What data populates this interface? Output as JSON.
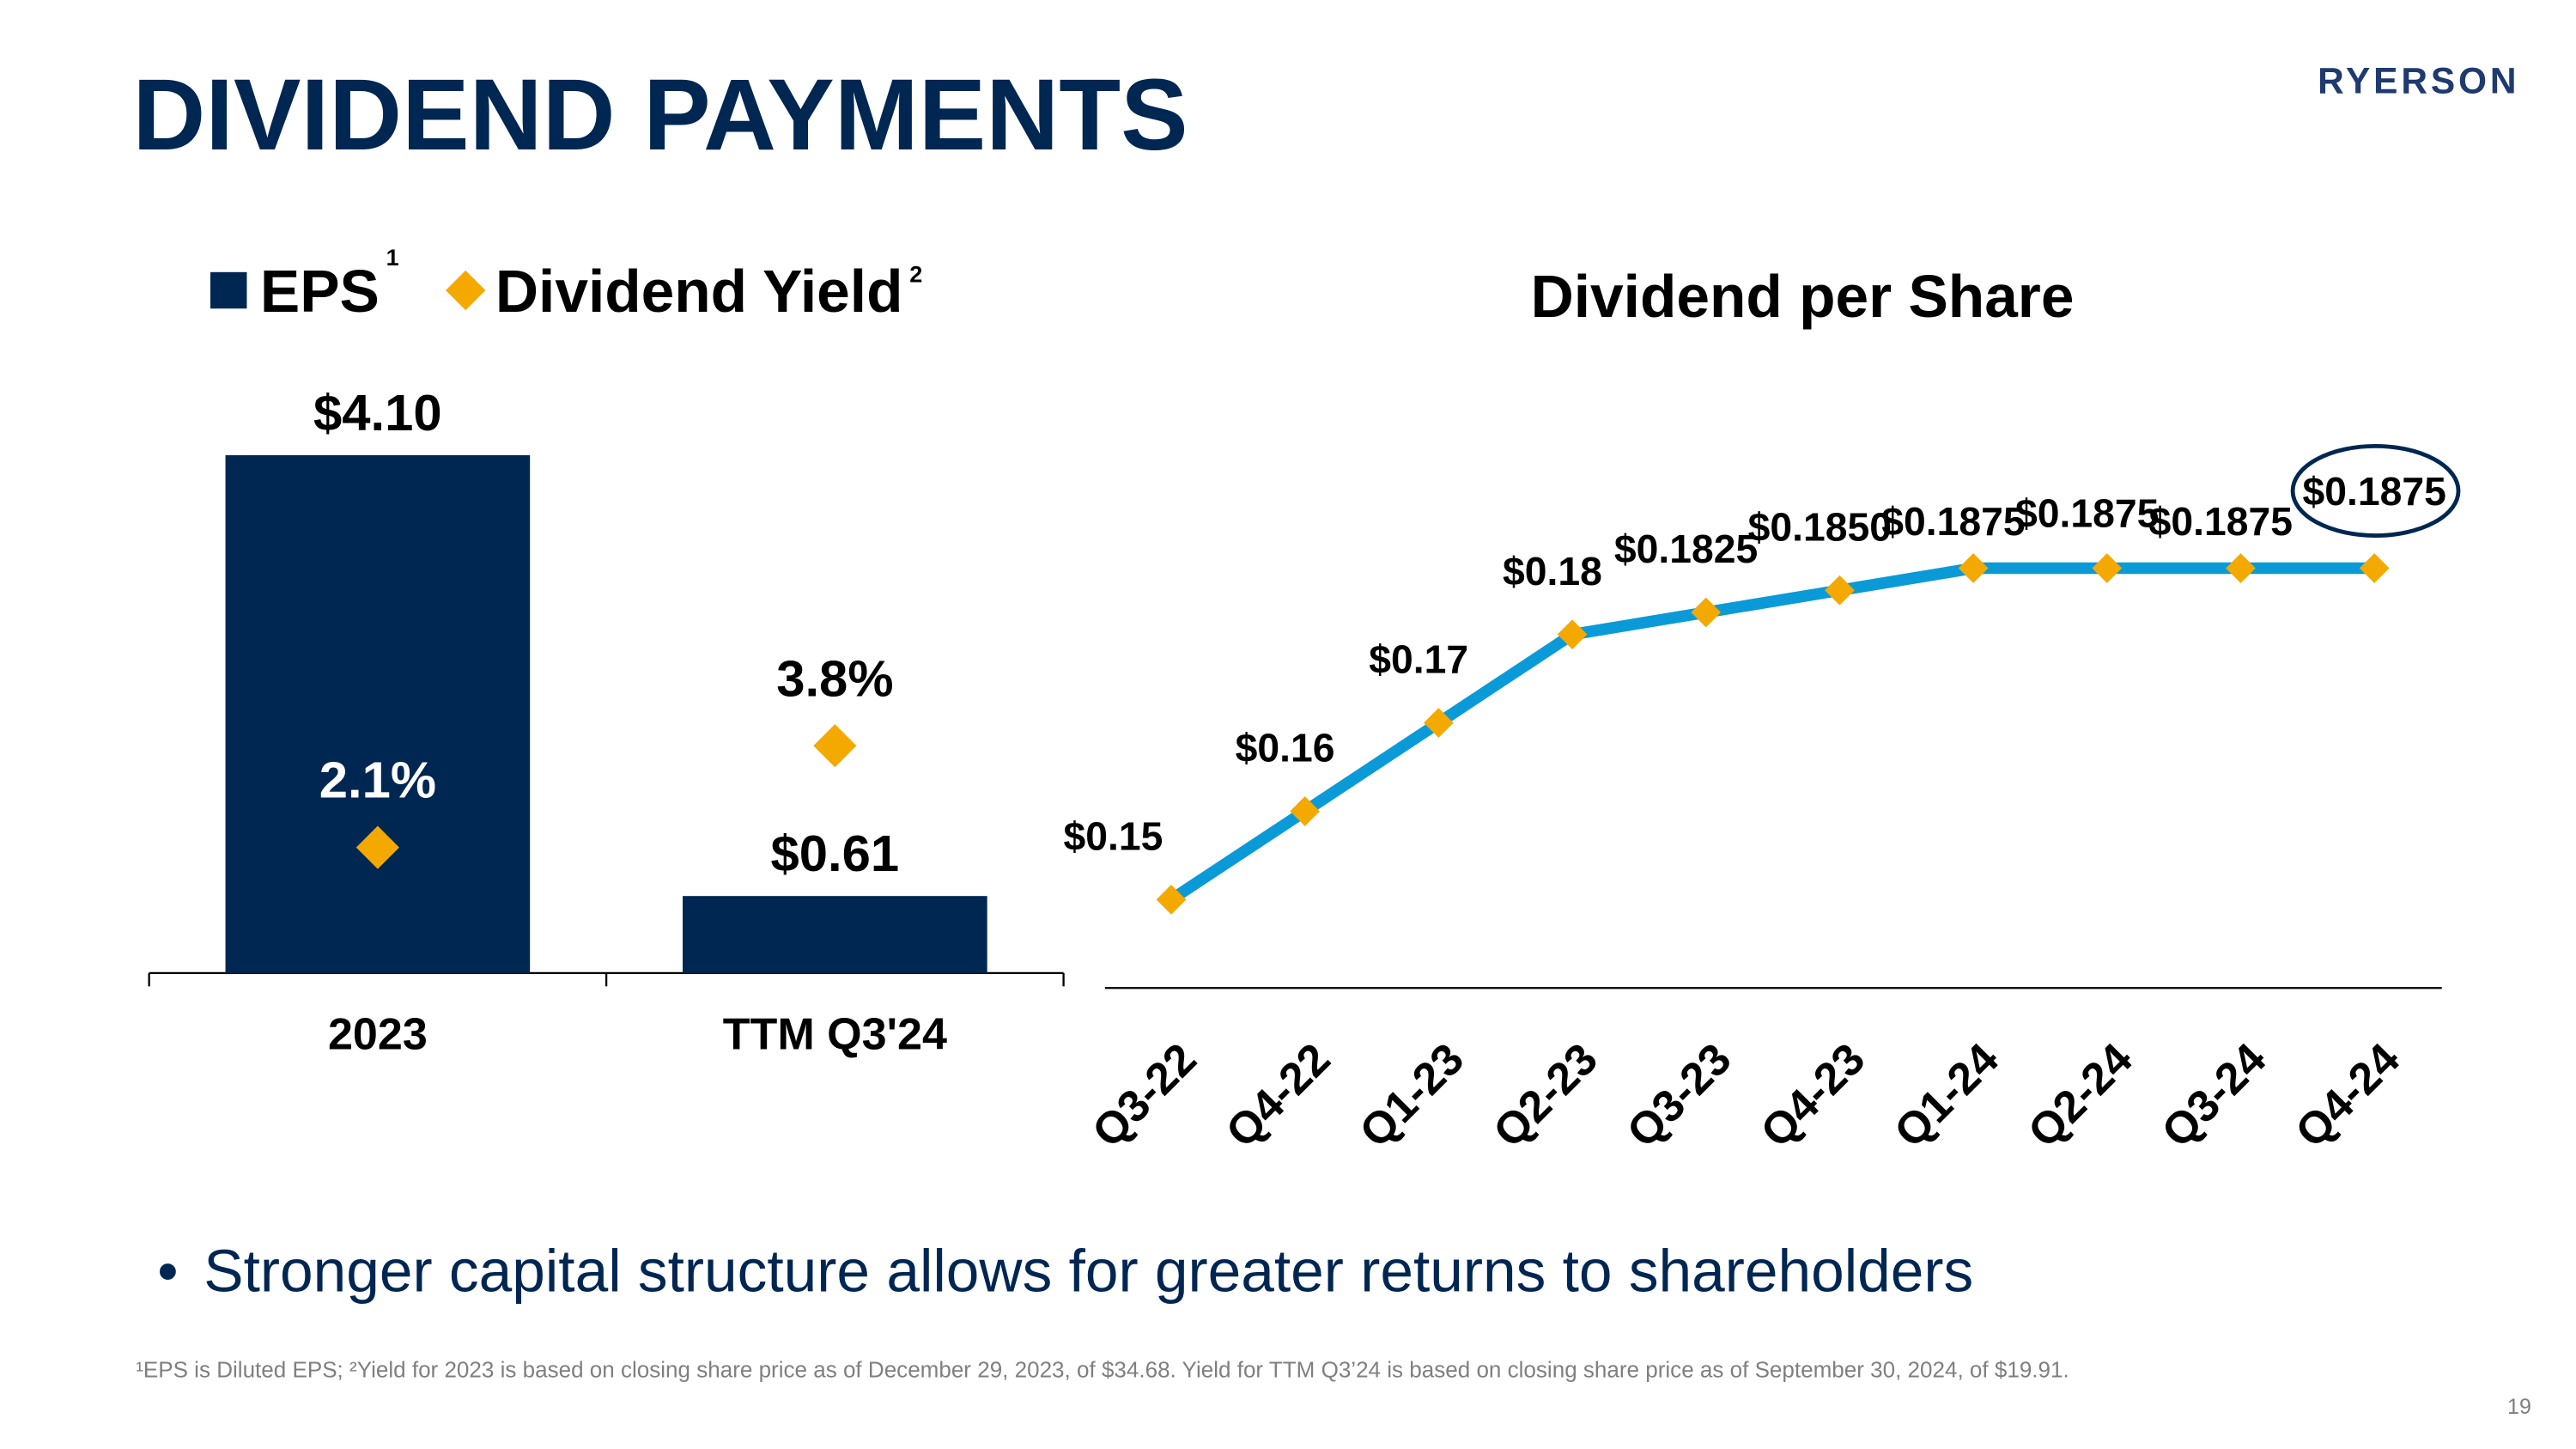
{
  "title": "DIVIDEND PAYMENTS",
  "logo": "RYERSON",
  "bullet": "Stronger capital structure allows for greater returns to shareholders",
  "footnote": "¹EPS is Diluted EPS; ²Yield for 2023 is based on closing share price as of December 29, 2023, of $34.68. Yield for TTM Q3’24 is based on closing share price as of September 30, 2024, of $19.91.",
  "page_number": "19",
  "chart_data": [
    {
      "type": "bar",
      "categories": [
        "2023",
        "TTM Q3'24"
      ],
      "ylim": [
        0,
        4.5
      ],
      "y2lim": [
        0,
        9.5
      ],
      "series": [
        {
          "name": "EPS",
          "footnote_ref": "1",
          "color": "#002652",
          "values": [
            4.1,
            0.61
          ],
          "value_labels": [
            "$4.10",
            "$0.61"
          ]
        },
        {
          "name": "Dividend Yield",
          "footnote_ref": "2",
          "type": "scatter",
          "marker": "diamond",
          "axis": "y2",
          "color": "#f4a900",
          "values": [
            2.1,
            3.8
          ],
          "value_labels": [
            "2.1%",
            "3.8%"
          ]
        }
      ]
    },
    {
      "type": "line",
      "title": "Dividend per Share",
      "categories": [
        "Q3-22",
        "Q4-22",
        "Q1-23",
        "Q2-23",
        "Q3-23",
        "Q4-23",
        "Q1-24",
        "Q2-24",
        "Q3-24",
        "Q4-24"
      ],
      "ylim": [
        0.14,
        0.2
      ],
      "color": "#0a9ad8",
      "marker_color": "#f4a900",
      "values": [
        0.15,
        0.16,
        0.17,
        0.18,
        0.1825,
        0.185,
        0.1875,
        0.1875,
        0.1875,
        0.1875
      ],
      "value_labels": [
        "$0.15",
        "$0.16",
        "$0.17",
        "$0.18",
        "$0.1825",
        "$0.1850",
        "$0.1875",
        "$0.1875",
        "$0.1875",
        "$0.1875"
      ]
    }
  ]
}
